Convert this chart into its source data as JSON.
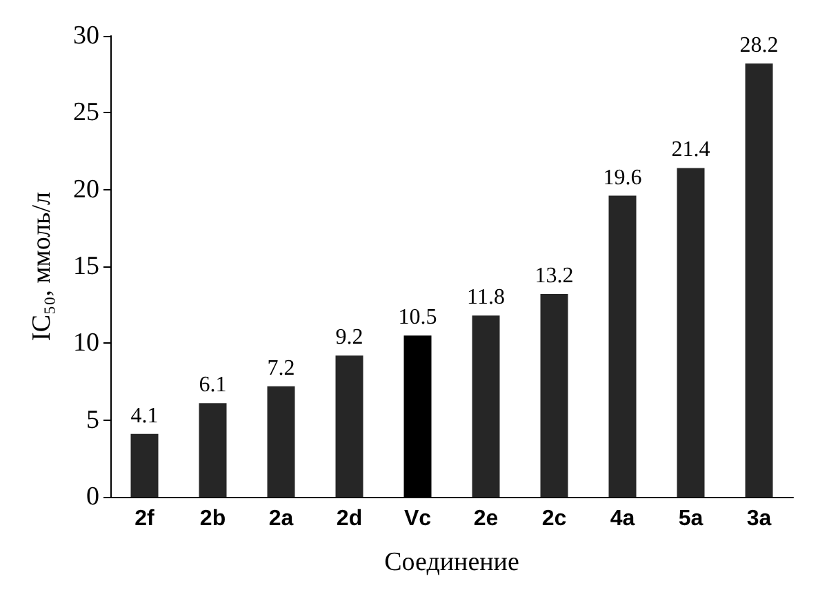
{
  "chart_data": {
    "type": "bar",
    "xlabel": "Соединение",
    "ylabel": "IC₅₀, ммоль/л",
    "categories": [
      "2f",
      "2b",
      "2a",
      "2d",
      "Vc",
      "2e",
      "2c",
      "4a",
      "5a",
      "3a"
    ],
    "values": [
      4.1,
      6.1,
      7.2,
      9.2,
      10.5,
      11.8,
      13.2,
      19.6,
      21.4,
      28.2
    ],
    "colors": [
      "#262626",
      "#262626",
      "#262626",
      "#262626",
      "#000000",
      "#262626",
      "#262626",
      "#262626",
      "#262626",
      "#262626"
    ],
    "ylim": [
      0,
      30
    ],
    "yticks": [
      0,
      5,
      10,
      15,
      20,
      25,
      30
    ],
    "grid": false,
    "data_labels": true
  }
}
